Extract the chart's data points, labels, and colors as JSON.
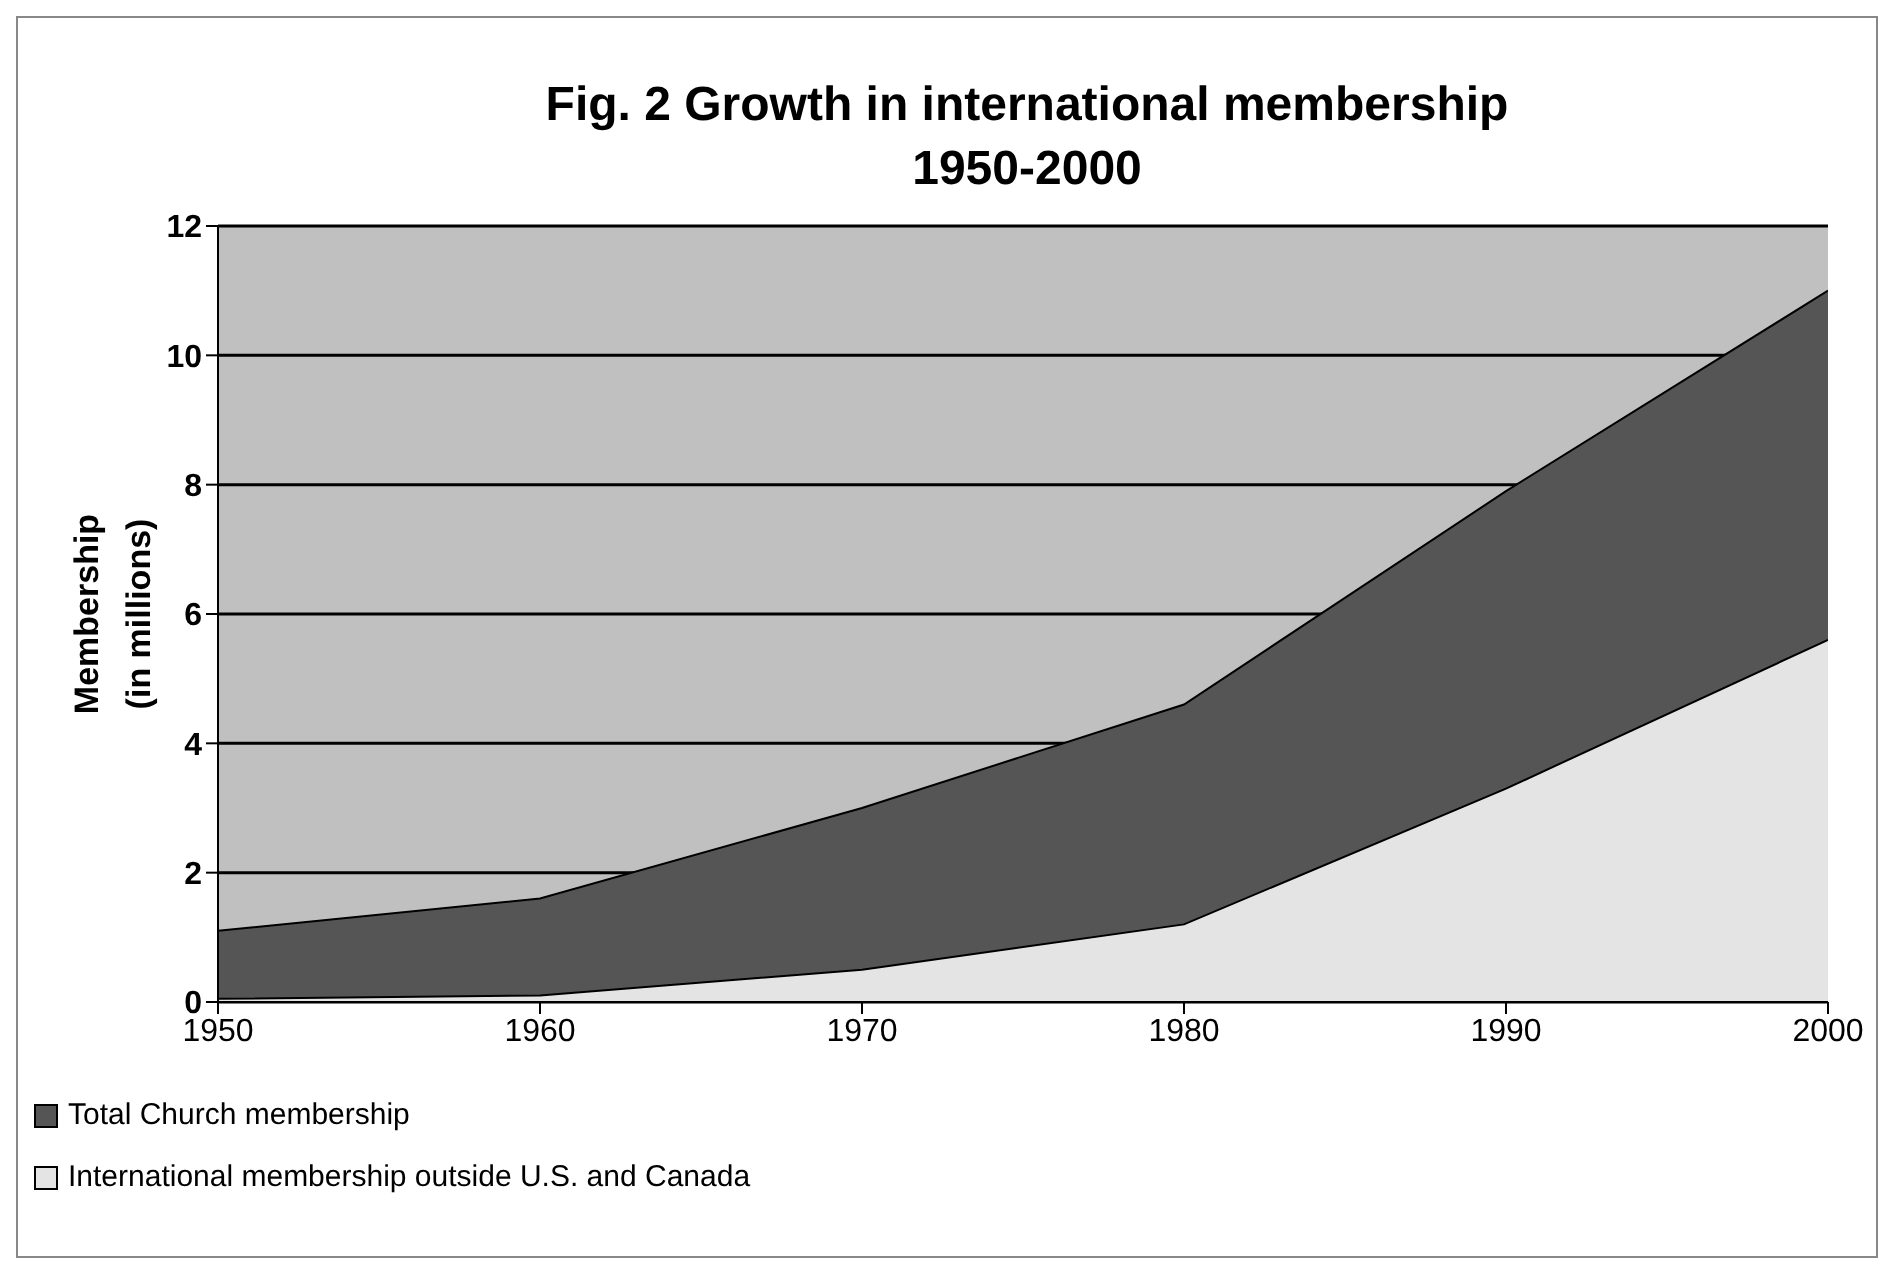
{
  "chart_data": {
    "type": "area",
    "title": "Fig. 2  Growth in international membership\n1950-2000",
    "ylabel": "Membership\n(in millions)",
    "x": [
      1950,
      1960,
      1970,
      1980,
      1990,
      2000
    ],
    "series": [
      {
        "name": "Total Church membership",
        "color": "#555555",
        "values": [
          1.1,
          1.6,
          3.0,
          4.6,
          7.9,
          11.0
        ]
      },
      {
        "name": "International membership outside U.S. and Canada",
        "color": "#e4e4e4",
        "values": [
          0.05,
          0.1,
          0.5,
          1.2,
          3.3,
          5.6
        ]
      }
    ],
    "xlim": [
      1950,
      2000
    ],
    "xticks": [
      1950,
      1960,
      1970,
      1980,
      1990,
      2000
    ],
    "ylim": [
      0,
      12
    ],
    "yticks": [
      0,
      2,
      4,
      6,
      8,
      10,
      12
    ],
    "grid": "y",
    "legend": "bottom"
  }
}
